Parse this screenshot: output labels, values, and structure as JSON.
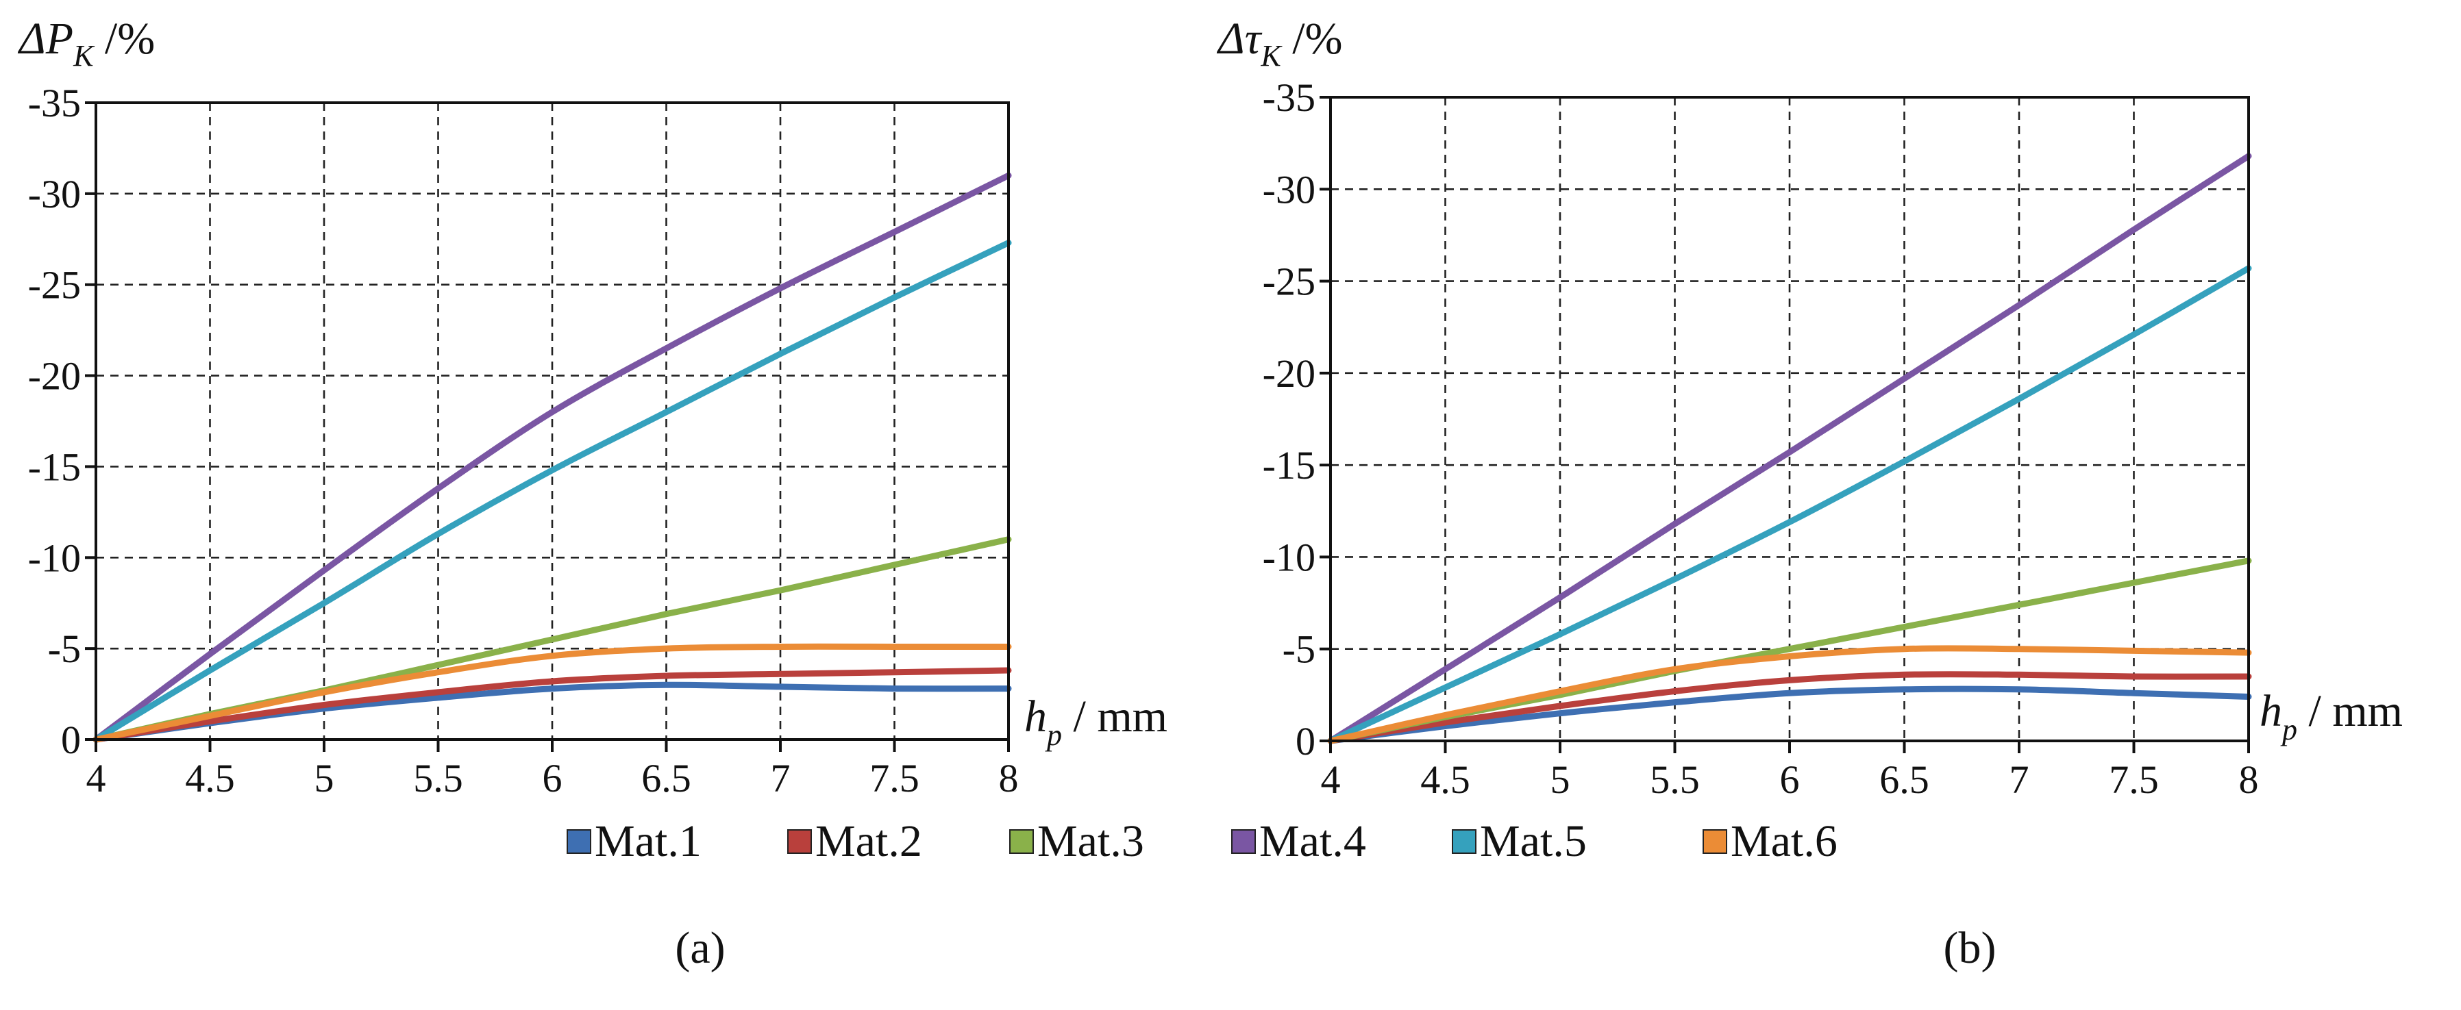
{
  "legend": [
    {
      "name": "Mat.1",
      "color": "#3e6fb2"
    },
    {
      "name": "Mat.2",
      "color": "#b9403c"
    },
    {
      "name": "Mat.3",
      "color": "#8ab14a"
    },
    {
      "name": "Mat.4",
      "color": "#7a56a3"
    },
    {
      "name": "Mat.5",
      "color": "#35a1bd"
    },
    {
      "name": "Mat.6",
      "color": "#eb8c36"
    }
  ],
  "chart_data": [
    {
      "type": "line",
      "panel_label": "(a)",
      "ylabel": {
        "main": "ΔP",
        "sub": "K",
        "unit": " /%"
      },
      "xlabel": {
        "main": "h",
        "sub": "p",
        "unit": " / mm"
      },
      "x_ticks": [
        4,
        4.5,
        5,
        5.5,
        6,
        6.5,
        7,
        7.5,
        8
      ],
      "x_tick_labels": [
        "4",
        "4.5",
        "5",
        "5.5",
        "6",
        "6.5",
        "7",
        "7.5",
        "8"
      ],
      "y_ticks": [
        0,
        -5,
        -10,
        -15,
        -20,
        -25,
        -30,
        -35
      ],
      "y_tick_labels": [
        "0",
        "-5",
        "-10",
        "-15",
        "-20",
        "-25",
        "-30",
        "-35"
      ],
      "xlim": [
        4,
        8
      ],
      "ylim": [
        0,
        -35
      ],
      "grid": true,
      "x": [
        4,
        4.5,
        5,
        5.5,
        6,
        6.5,
        7,
        7.5,
        8
      ],
      "series": [
        {
          "name": "Mat.1",
          "values": [
            0,
            -0.9,
            -1.7,
            -2.3,
            -2.8,
            -3.0,
            -2.9,
            -2.8,
            -2.8
          ]
        },
        {
          "name": "Mat.2",
          "values": [
            0,
            -1.0,
            -1.9,
            -2.6,
            -3.2,
            -3.5,
            -3.6,
            -3.7,
            -3.8
          ]
        },
        {
          "name": "Mat.3",
          "values": [
            0,
            -1.4,
            -2.7,
            -4.1,
            -5.5,
            -6.9,
            -8.2,
            -9.6,
            -11.0
          ]
        },
        {
          "name": "Mat.4",
          "values": [
            0,
            -4.7,
            -9.3,
            -13.8,
            -18.0,
            -21.5,
            -24.8,
            -27.9,
            -31.0
          ]
        },
        {
          "name": "Mat.5",
          "values": [
            0,
            -3.8,
            -7.5,
            -11.3,
            -14.8,
            -18.0,
            -21.2,
            -24.3,
            -27.3
          ]
        },
        {
          "name": "Mat.6",
          "values": [
            0,
            -1.3,
            -2.6,
            -3.7,
            -4.6,
            -5.0,
            -5.1,
            -5.1,
            -5.1
          ]
        }
      ]
    },
    {
      "type": "line",
      "panel_label": "(b)",
      "ylabel": {
        "main": "Δτ",
        "sub": "K",
        "unit": " /%"
      },
      "xlabel": {
        "main": "h",
        "sub": "p",
        "unit": " / mm"
      },
      "x_ticks": [
        4,
        4.5,
        5,
        5.5,
        6,
        6.5,
        7,
        7.5,
        8
      ],
      "x_tick_labels": [
        "4",
        "4.5",
        "5",
        "5.5",
        "6",
        "6.5",
        "7",
        "7.5",
        "8"
      ],
      "y_ticks": [
        0,
        -5,
        -10,
        -15,
        -20,
        -25,
        -30,
        -35
      ],
      "y_tick_labels": [
        "0",
        "-5",
        "-10",
        "-15",
        "-20",
        "-25",
        "-30",
        "-35"
      ],
      "xlim": [
        4,
        8
      ],
      "ylim": [
        0,
        -35
      ],
      "grid": true,
      "x": [
        4,
        4.5,
        5,
        5.5,
        6,
        6.5,
        7,
        7.5,
        8
      ],
      "series": [
        {
          "name": "Mat.1",
          "values": [
            0,
            -0.8,
            -1.5,
            -2.1,
            -2.6,
            -2.8,
            -2.8,
            -2.6,
            -2.4
          ]
        },
        {
          "name": "Mat.2",
          "values": [
            0,
            -1.0,
            -1.9,
            -2.7,
            -3.3,
            -3.6,
            -3.6,
            -3.5,
            -3.5
          ]
        },
        {
          "name": "Mat.3",
          "values": [
            0,
            -1.3,
            -2.5,
            -3.8,
            -5.0,
            -6.2,
            -7.4,
            -8.6,
            -9.8
          ]
        },
        {
          "name": "Mat.4",
          "values": [
            0,
            -3.9,
            -7.8,
            -11.8,
            -15.7,
            -19.7,
            -23.7,
            -27.8,
            -31.8
          ]
        },
        {
          "name": "Mat.5",
          "values": [
            0,
            -2.9,
            -5.8,
            -8.8,
            -11.9,
            -15.2,
            -18.6,
            -22.1,
            -25.7
          ]
        },
        {
          "name": "Mat.6",
          "values": [
            0,
            -1.4,
            -2.7,
            -3.9,
            -4.6,
            -5.0,
            -5.0,
            -4.9,
            -4.8
          ]
        }
      ]
    }
  ]
}
